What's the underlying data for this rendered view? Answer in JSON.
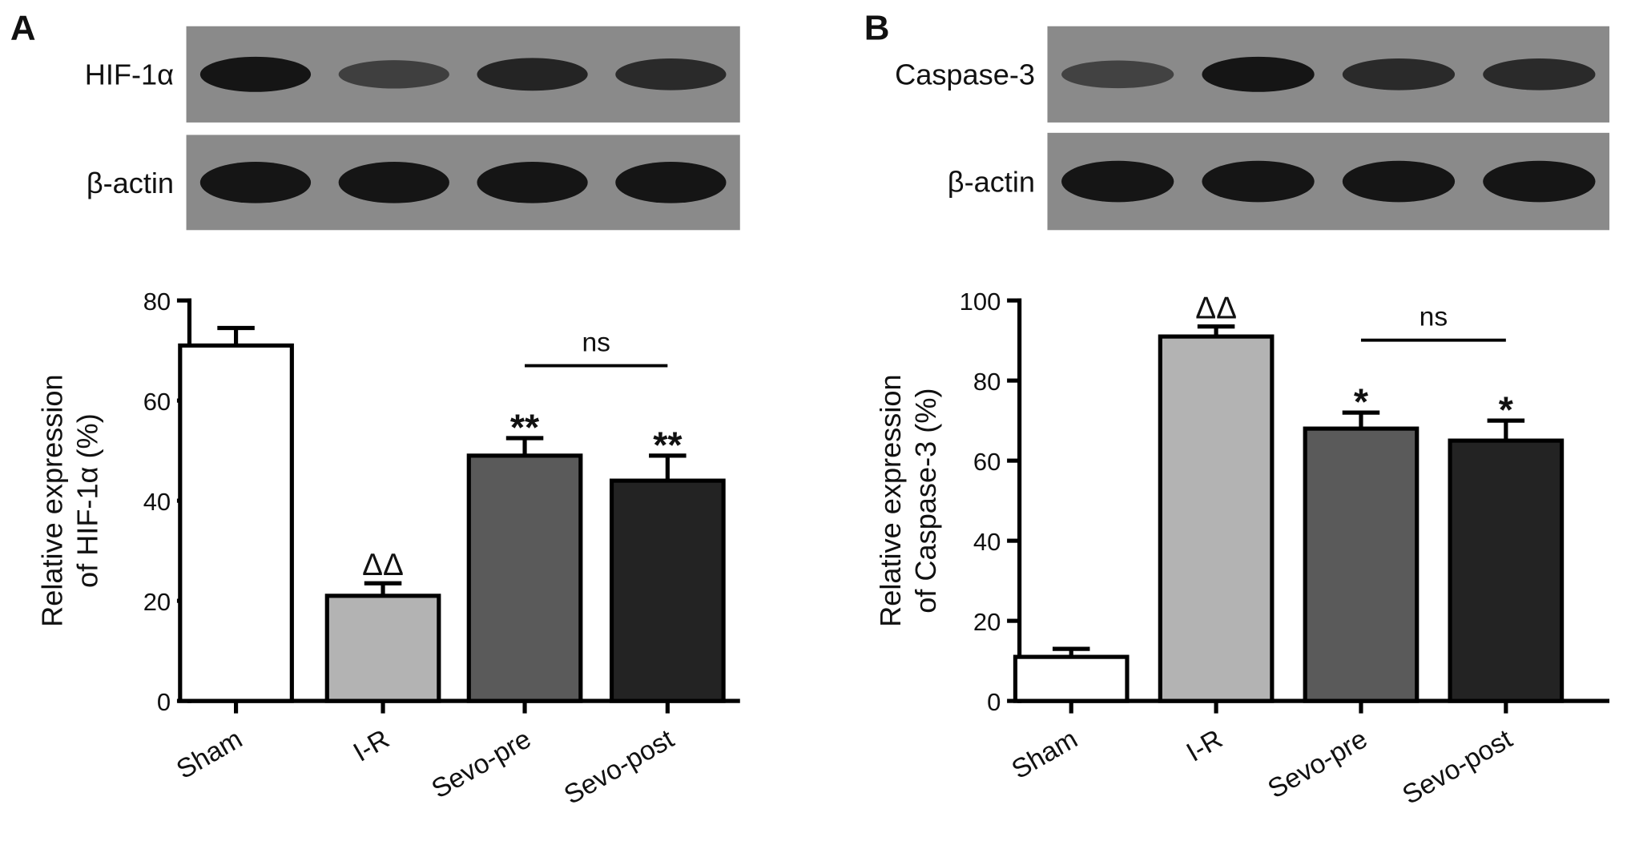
{
  "chart_data": [
    {
      "type": "bar",
      "panel": "A",
      "blots": [
        "HIF-1α",
        "β-actin"
      ],
      "y_label": [
        "Relative expression",
        "of HIF-1α (%)"
      ],
      "categories": [
        "Sham",
        "I-R",
        "Sevo-pre",
        "Sevo-post"
      ],
      "values": [
        71,
        21,
        49,
        44
      ],
      "errors": [
        3.5,
        2.5,
        3.5,
        5
      ],
      "colors": [
        "#ffffff",
        "#b3b3b3",
        "#5a5a5a",
        "#232323"
      ],
      "significance": [
        null,
        "ΔΔ",
        "**",
        "**"
      ],
      "bracket": {
        "label": "ns",
        "between": [
          "Sevo-pre",
          "Sevo-post"
        ]
      },
      "ylim": [
        0,
        80
      ],
      "yticks": [
        0,
        20,
        40,
        60,
        80
      ]
    },
    {
      "type": "bar",
      "panel": "B",
      "blots": [
        "Caspase-3",
        "β-actin"
      ],
      "y_label": [
        "Relative expression",
        "of Caspase-3 (%)"
      ],
      "categories": [
        "Sham",
        "I-R",
        "Sevo-pre",
        "Sevo-post"
      ],
      "values": [
        11,
        91,
        68,
        65
      ],
      "errors": [
        2,
        2.5,
        4,
        5
      ],
      "colors": [
        "#ffffff",
        "#b3b3b3",
        "#5a5a5a",
        "#232323"
      ],
      "significance": [
        null,
        "ΔΔ",
        "*",
        "*"
      ],
      "bracket": {
        "label": "ns",
        "between": [
          "Sevo-pre",
          "Sevo-post"
        ]
      },
      "ylim": [
        0,
        100
      ],
      "yticks": [
        0,
        20,
        40,
        60,
        80,
        100
      ]
    }
  ]
}
